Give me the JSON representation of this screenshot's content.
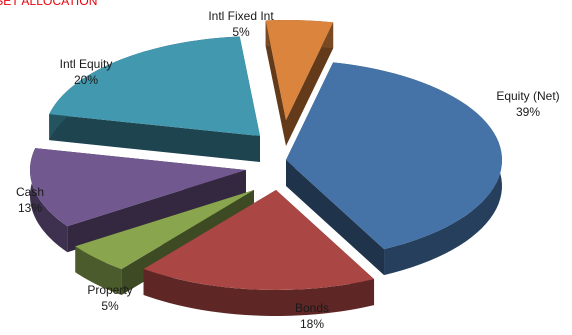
{
  "chart_data": {
    "type": "pie",
    "style": "3d-exploded",
    "title": "ASSET ALLOCATION",
    "legend": "none",
    "slices": [
      {
        "label": "Equity (Net)",
        "value": 39,
        "percent": "39%",
        "color": "#4573a7"
      },
      {
        "label": "Bonds",
        "value": 18,
        "percent": "18%",
        "color": "#aa4643"
      },
      {
        "label": "Property",
        "value": 5,
        "percent": "5%",
        "color": "#89a54e"
      },
      {
        "label": "Cash",
        "value": 13,
        "percent": "13%",
        "color": "#71588f"
      },
      {
        "label": "Intl Equity",
        "value": 20,
        "percent": "20%",
        "color": "#4198af"
      },
      {
        "label": "Intl Fixed Int",
        "value": 5,
        "percent": "5%",
        "color": "#db843d"
      }
    ]
  }
}
